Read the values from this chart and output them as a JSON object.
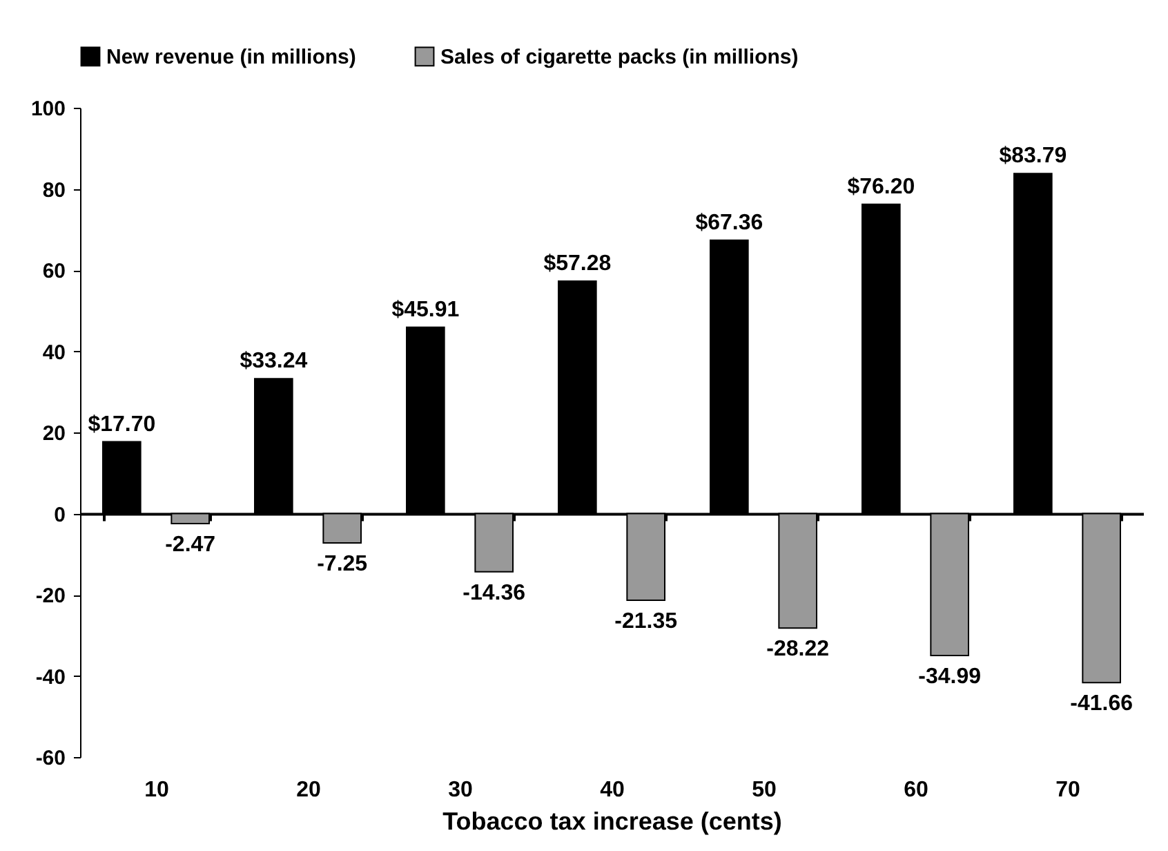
{
  "chart_data": {
    "type": "bar",
    "xlabel": "Tobacco tax increase (cents)",
    "categories": [
      "10",
      "20",
      "30",
      "40",
      "50",
      "60",
      "70"
    ],
    "series": [
      {
        "name": "New revenue (in millions)",
        "color": "#000000",
        "values": [
          17.7,
          33.24,
          45.91,
          57.28,
          67.36,
          76.2,
          83.79
        ],
        "value_labels": [
          "$17.70",
          "$33.24",
          "$45.91",
          "$57.28",
          "$67.36",
          "$76.20",
          "$83.79"
        ]
      },
      {
        "name": "Sales of cigarette packs (in millions)",
        "color": "#999999",
        "values": [
          -2.47,
          -7.25,
          -14.36,
          -21.35,
          -28.22,
          -34.99,
          -41.66
        ],
        "value_labels": [
          "-2.47",
          "-7.25",
          "-14.36",
          "-21.35",
          "-28.22",
          "-34.99",
          "-41.66"
        ]
      }
    ],
    "ylim": [
      -60,
      100
    ],
    "yticks": [
      -60,
      -40,
      -20,
      0,
      20,
      40,
      60,
      80,
      100
    ],
    "legend": "top"
  }
}
